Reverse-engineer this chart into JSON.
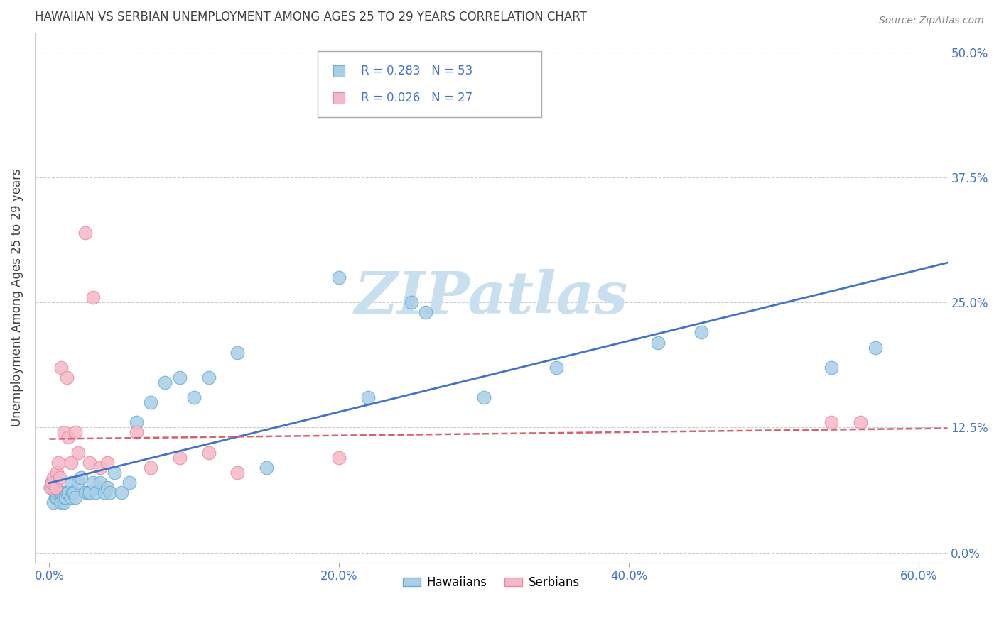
{
  "title": "HAWAIIAN VS SERBIAN UNEMPLOYMENT AMONG AGES 25 TO 29 YEARS CORRELATION CHART",
  "source": "Source: ZipAtlas.com",
  "xlabel_ticks": [
    "0.0%",
    "20.0%",
    "40.0%",
    "60.0%"
  ],
  "xlabel_tick_vals": [
    0.0,
    0.2,
    0.4,
    0.6
  ],
  "ylabel": "Unemployment Among Ages 25 to 29 years",
  "ylabel_ticks": [
    "0.0%",
    "12.5%",
    "25.0%",
    "37.5%",
    "50.0%"
  ],
  "ylabel_tick_vals": [
    0.0,
    0.125,
    0.25,
    0.375,
    0.5
  ],
  "xlim": [
    -0.01,
    0.62
  ],
  "ylim": [
    -0.01,
    0.52
  ],
  "hawaiian_R": 0.283,
  "hawaiian_N": 53,
  "serbian_R": 0.026,
  "serbian_N": 27,
  "hawaiian_color": "#A8CEE8",
  "hawaiian_edge_color": "#6AACD4",
  "serbian_color": "#F5B8C8",
  "serbian_edge_color": "#E88AA0",
  "trend_hawaiian_color": "#4472C4",
  "trend_serbian_color": "#D46070",
  "watermark_text": "ZIPatlas",
  "watermark_color": "#C8DFF0",
  "title_color": "#404040",
  "axis_label_color": "#4472C4",
  "ylabel_color": "#404040",
  "grid_color": "#CCCCCC",
  "hawaiian_x": [
    0.001,
    0.002,
    0.003,
    0.003,
    0.004,
    0.005,
    0.005,
    0.007,
    0.008,
    0.008,
    0.009,
    0.01,
    0.01,
    0.011,
    0.012,
    0.013,
    0.015,
    0.015,
    0.016,
    0.017,
    0.018,
    0.02,
    0.022,
    0.025,
    0.027,
    0.028,
    0.03,
    0.032,
    0.035,
    0.038,
    0.04,
    0.042,
    0.045,
    0.05,
    0.055,
    0.06,
    0.07,
    0.08,
    0.09,
    0.1,
    0.11,
    0.13,
    0.15,
    0.2,
    0.22,
    0.25,
    0.26,
    0.3,
    0.35,
    0.42,
    0.45,
    0.54,
    0.57
  ],
  "hawaiian_y": [
    0.065,
    0.07,
    0.05,
    0.065,
    0.055,
    0.055,
    0.06,
    0.06,
    0.05,
    0.06,
    0.06,
    0.05,
    0.055,
    0.055,
    0.06,
    0.06,
    0.055,
    0.07,
    0.06,
    0.06,
    0.055,
    0.07,
    0.075,
    0.06,
    0.06,
    0.06,
    0.07,
    0.06,
    0.07,
    0.06,
    0.065,
    0.06,
    0.08,
    0.06,
    0.07,
    0.13,
    0.15,
    0.17,
    0.175,
    0.155,
    0.175,
    0.2,
    0.085,
    0.275,
    0.155,
    0.25,
    0.24,
    0.155,
    0.185,
    0.21,
    0.22,
    0.185,
    0.205
  ],
  "serbian_x": [
    0.001,
    0.002,
    0.003,
    0.004,
    0.005,
    0.006,
    0.007,
    0.008,
    0.01,
    0.012,
    0.013,
    0.015,
    0.018,
    0.02,
    0.025,
    0.028,
    0.03,
    0.035,
    0.04,
    0.06,
    0.07,
    0.09,
    0.11,
    0.13,
    0.2,
    0.54,
    0.56
  ],
  "serbian_y": [
    0.065,
    0.07,
    0.075,
    0.065,
    0.08,
    0.09,
    0.075,
    0.185,
    0.12,
    0.175,
    0.115,
    0.09,
    0.12,
    0.1,
    0.32,
    0.09,
    0.255,
    0.085,
    0.09,
    0.12,
    0.085,
    0.095,
    0.1,
    0.08,
    0.095,
    0.13,
    0.13
  ]
}
